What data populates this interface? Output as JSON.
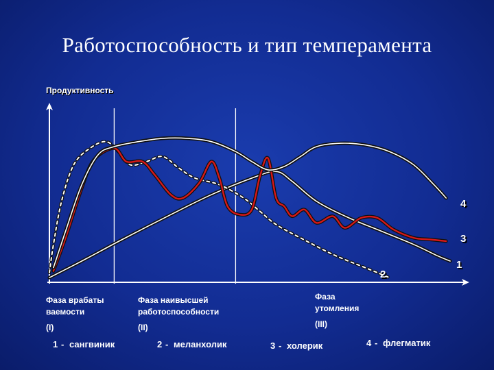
{
  "slide": {
    "title": "Работоспособность и тип темперамента"
  },
  "colors": {
    "background": "#122c92",
    "axis": "#ffffff",
    "curve_outline": "#111111",
    "curve_fill": "#ffffff",
    "curve3_fill": "#d81818"
  },
  "chart_data": {
    "type": "line",
    "title": "Работоспособность и тип темперамента",
    "ylabel": "Продуктивность",
    "xlabel": "",
    "axis_ticks": false,
    "phases": [
      {
        "line1": "Фаза врабаты",
        "line2": "ваемости",
        "line3": "(I)"
      },
      {
        "line1": "Фаза наивысшей",
        "line2": "работоспособности",
        "line3": "(II)"
      },
      {
        "line1": "Фаза",
        "line2": "утомления",
        "line3": "(III)"
      }
    ],
    "phase_boundaries": [
      16,
      46
    ],
    "xlim": [
      0,
      100
    ],
    "ylim": [
      0,
      100
    ],
    "series": [
      {
        "name": "1",
        "style": "solid",
        "points": [
          [
            0,
            2
          ],
          [
            8,
            12
          ],
          [
            18,
            25
          ],
          [
            30,
            40
          ],
          [
            40,
            52
          ],
          [
            50,
            62
          ],
          [
            56,
            66
          ],
          [
            60,
            60
          ],
          [
            66,
            48
          ],
          [
            74,
            38
          ],
          [
            82,
            30
          ],
          [
            90,
            22
          ],
          [
            96,
            15
          ],
          [
            99,
            12
          ]
        ]
      },
      {
        "name": "2",
        "style": "dashed",
        "points": [
          [
            0,
            5
          ],
          [
            1,
            22
          ],
          [
            3,
            48
          ],
          [
            6,
            70
          ],
          [
            10,
            80
          ],
          [
            14,
            84
          ],
          [
            17,
            78
          ],
          [
            20,
            70
          ],
          [
            24,
            72
          ],
          [
            28,
            75
          ],
          [
            32,
            68
          ],
          [
            36,
            62
          ],
          [
            42,
            58
          ],
          [
            48,
            50
          ],
          [
            52,
            42
          ],
          [
            56,
            34
          ],
          [
            62,
            26
          ],
          [
            70,
            16
          ],
          [
            78,
            8
          ],
          [
            84,
            2
          ]
        ]
      },
      {
        "name": "3",
        "style": "red",
        "points": [
          [
            1,
            6
          ],
          [
            4,
            26
          ],
          [
            8,
            56
          ],
          [
            11,
            73
          ],
          [
            16,
            80
          ],
          [
            19,
            72
          ],
          [
            23,
            72
          ],
          [
            26,
            64
          ],
          [
            30,
            52
          ],
          [
            33,
            50
          ],
          [
            37,
            59
          ],
          [
            40,
            72
          ],
          [
            42,
            62
          ],
          [
            44,
            45
          ],
          [
            47,
            40
          ],
          [
            50,
            43
          ],
          [
            52,
            63
          ],
          [
            54,
            74
          ],
          [
            56,
            50
          ],
          [
            58,
            45
          ],
          [
            60,
            39
          ],
          [
            63,
            43
          ],
          [
            66,
            35
          ],
          [
            70,
            39
          ],
          [
            73,
            32
          ],
          [
            77,
            38
          ],
          [
            81,
            38
          ],
          [
            85,
            31
          ],
          [
            90,
            26
          ],
          [
            94,
            25
          ],
          [
            98,
            24
          ]
        ]
      },
      {
        "name": "4",
        "style": "solid",
        "points": [
          [
            1,
            8
          ],
          [
            4,
            30
          ],
          [
            8,
            58
          ],
          [
            12,
            76
          ],
          [
            16,
            81
          ],
          [
            22,
            84
          ],
          [
            28,
            86
          ],
          [
            34,
            86
          ],
          [
            40,
            84
          ],
          [
            46,
            78
          ],
          [
            50,
            72
          ],
          [
            54,
            67
          ],
          [
            58,
            69
          ],
          [
            62,
            75
          ],
          [
            66,
            81
          ],
          [
            72,
            83
          ],
          [
            78,
            82
          ],
          [
            84,
            78
          ],
          [
            90,
            70
          ],
          [
            95,
            58
          ],
          [
            98,
            50
          ]
        ]
      }
    ],
    "curve_labels": {
      "series1": "1",
      "series2": "2",
      "series3": "3",
      "series4": "4"
    },
    "legend": [
      {
        "num": "1",
        "text": "сангвиник"
      },
      {
        "num": "2",
        "text": "меланхолик"
      },
      {
        "num": "3",
        "text": "холерик"
      },
      {
        "num": "4",
        "text": "флегматик"
      }
    ]
  }
}
